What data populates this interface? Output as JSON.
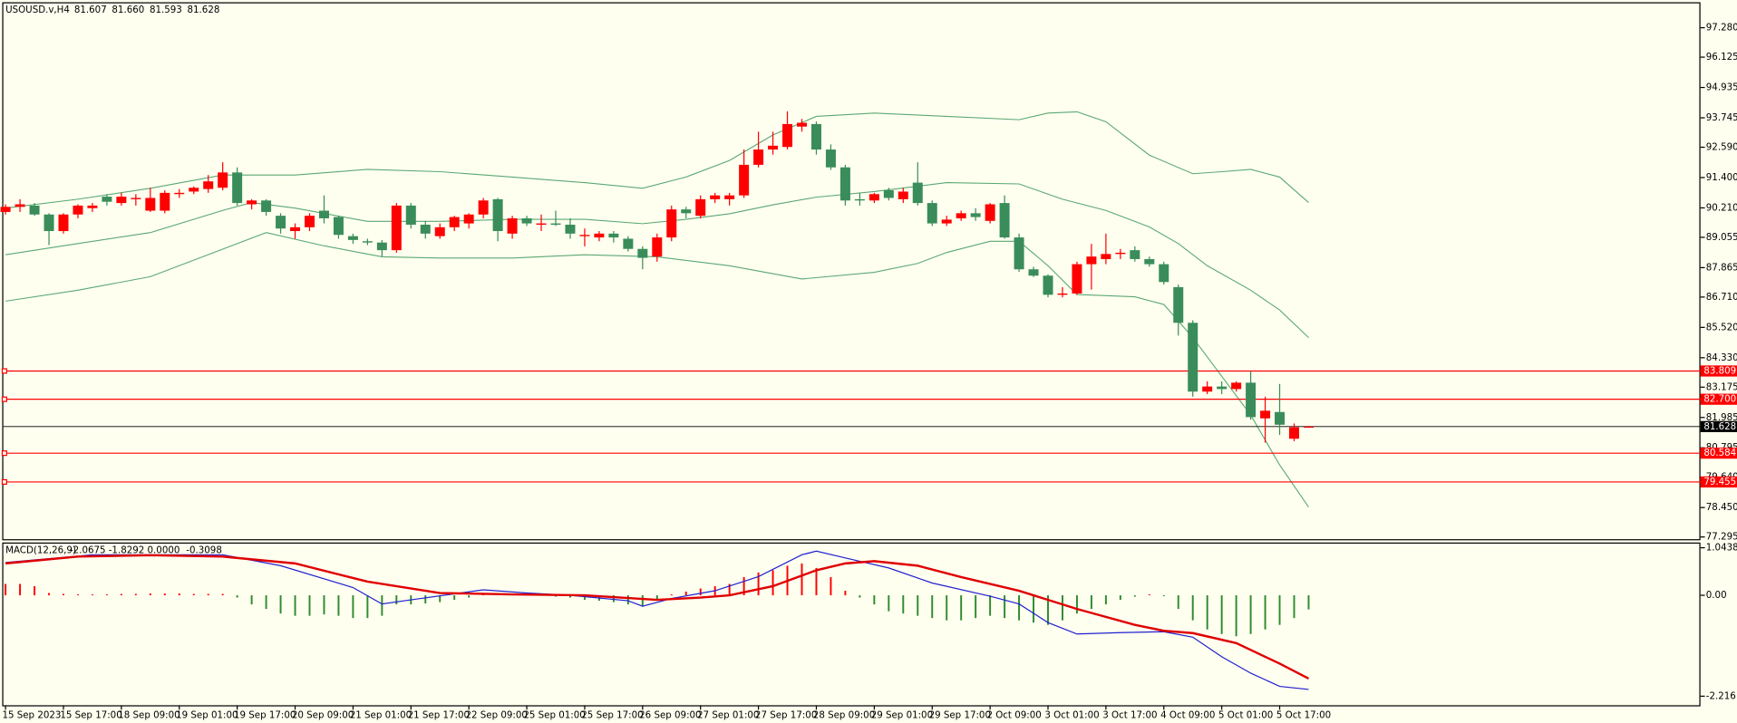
{
  "chart_data": [
    {
      "type": "candlestick",
      "title": "USOUSD.v,H4",
      "readout_labels": [
        "81.607",
        "81.660",
        "81.593",
        "81.628"
      ],
      "categories": [
        "15 Sep 2023",
        null,
        null,
        null,
        "15 Sep 17:00",
        null,
        null,
        null,
        "18 Sep 09:00",
        null,
        null,
        null,
        "19 Sep 01:00",
        null,
        null,
        null,
        "19 Sep 17:00",
        null,
        null,
        null,
        "20 Sep 09:00",
        null,
        null,
        null,
        "21 Sep 01:00",
        null,
        null,
        null,
        "21 Sep 17:00",
        null,
        null,
        null,
        "22 Sep 09:00",
        null,
        null,
        null,
        "25 Sep 01:00",
        null,
        null,
        null,
        "25 Sep 17:00",
        null,
        null,
        null,
        "26 Sep 09:00",
        null,
        null,
        null,
        "27 Sep 01:00",
        null,
        null,
        null,
        "27 Sep 17:00",
        null,
        null,
        null,
        "28 Sep 09:00",
        null,
        null,
        null,
        "29 Sep 01:00",
        null,
        null,
        null,
        "29 Sep 17:00",
        null,
        null,
        null,
        "2 Oct 09:00",
        null,
        null,
        null,
        "3 Oct 01:00",
        null,
        null,
        null,
        "3 Oct 17:00",
        null,
        null,
        null,
        "4 Oct 09:00",
        null,
        null,
        null,
        "5 Oct 01:00",
        null,
        null,
        null,
        "5 Oct 17:00",
        null,
        null
      ],
      "open": [
        90.05,
        90.25,
        90.3,
        89.95,
        89.3,
        89.95,
        90.2,
        90.65,
        90.4,
        90.55,
        90.1,
        90.1,
        90.75,
        90.85,
        90.95,
        91.0,
        91.6,
        90.35,
        90.5,
        89.9,
        89.3,
        89.45,
        90.1,
        89.85,
        89.1,
        88.9,
        88.85,
        88.55,
        90.3,
        89.55,
        89.1,
        89.45,
        89.6,
        89.95,
        90.55,
        89.2,
        89.8,
        89.55,
        89.6,
        89.55,
        89.1,
        89.05,
        89.2,
        89.0,
        88.6,
        88.3,
        89.05,
        90.15,
        89.9,
        90.55,
        90.55,
        90.7,
        91.9,
        92.5,
        92.6,
        93.4,
        93.5,
        92.5,
        91.8,
        90.55,
        90.5,
        90.9,
        90.55,
        91.2,
        90.4,
        89.6,
        89.8,
        90.0,
        89.7,
        90.4,
        89.05,
        87.8,
        87.55,
        86.8,
        86.85,
        88.0,
        88.2,
        88.4,
        88.55,
        88.2,
        88.0,
        87.1,
        85.7,
        83.0,
        83.2,
        83.1,
        83.35,
        81.95,
        82.2,
        81.15,
        81.607
      ],
      "high": [
        90.35,
        90.55,
        90.4,
        90.0,
        90.0,
        90.35,
        90.4,
        90.75,
        90.8,
        90.75,
        91.0,
        90.9,
        90.95,
        91.05,
        91.5,
        92.0,
        91.8,
        90.55,
        90.55,
        90.0,
        89.6,
        90.0,
        90.7,
        89.9,
        89.2,
        89.0,
        88.95,
        90.4,
        90.4,
        89.7,
        89.6,
        89.9,
        90.0,
        90.6,
        90.6,
        89.9,
        89.9,
        89.95,
        90.1,
        89.8,
        89.4,
        89.3,
        89.3,
        89.1,
        88.7,
        89.2,
        90.3,
        90.25,
        90.7,
        90.8,
        90.8,
        92.5,
        93.2,
        93.2,
        94.0,
        93.7,
        93.6,
        92.7,
        91.9,
        90.8,
        90.8,
        91.0,
        91.0,
        92.0,
        90.5,
        89.9,
        90.1,
        90.2,
        90.4,
        90.7,
        89.2,
        87.9,
        87.6,
        87.1,
        88.1,
        88.8,
        89.2,
        88.6,
        88.7,
        88.3,
        88.1,
        87.2,
        85.8,
        83.4,
        83.4,
        83.4,
        83.8,
        82.8,
        83.3,
        81.75,
        81.66
      ],
      "low": [
        89.95,
        90.05,
        89.9,
        88.75,
        89.2,
        89.8,
        90.05,
        90.3,
        90.3,
        90.3,
        90.05,
        90.0,
        90.6,
        90.75,
        90.8,
        90.9,
        90.3,
        90.15,
        89.9,
        89.2,
        89.0,
        89.3,
        89.6,
        89.0,
        88.8,
        88.75,
        88.3,
        88.45,
        89.4,
        89.0,
        89.0,
        89.3,
        89.4,
        89.8,
        88.9,
        89.0,
        89.5,
        89.3,
        89.5,
        89.0,
        88.7,
        88.9,
        88.85,
        88.5,
        87.8,
        88.1,
        88.9,
        89.8,
        89.8,
        90.4,
        90.3,
        90.6,
        91.8,
        92.3,
        92.5,
        93.2,
        92.3,
        91.7,
        90.3,
        90.3,
        90.4,
        90.5,
        90.4,
        90.3,
        89.5,
        89.5,
        89.7,
        89.7,
        89.6,
        89.0,
        87.7,
        87.5,
        86.7,
        86.7,
        86.8,
        87.0,
        88.0,
        88.2,
        88.1,
        87.9,
        87.2,
        85.2,
        82.8,
        82.9,
        82.9,
        83.0,
        81.9,
        81.0,
        81.3,
        81.05,
        81.593
      ],
      "close": [
        90.25,
        90.35,
        89.95,
        89.3,
        89.95,
        90.3,
        90.3,
        90.45,
        90.65,
        90.6,
        90.6,
        90.8,
        90.8,
        91.0,
        91.25,
        91.6,
        90.4,
        90.5,
        90.05,
        89.4,
        89.45,
        89.9,
        89.8,
        89.15,
        88.95,
        88.85,
        88.55,
        90.3,
        89.55,
        89.2,
        89.45,
        89.85,
        89.95,
        90.5,
        89.3,
        89.8,
        89.6,
        89.6,
        89.55,
        89.2,
        89.15,
        89.2,
        89.05,
        88.6,
        88.25,
        89.05,
        90.15,
        90.0,
        90.55,
        90.7,
        90.7,
        91.9,
        92.5,
        92.65,
        93.5,
        93.55,
        92.5,
        91.8,
        90.5,
        90.5,
        90.75,
        90.6,
        90.85,
        90.4,
        89.6,
        89.75,
        90.0,
        89.85,
        90.35,
        89.05,
        87.8,
        87.55,
        86.8,
        86.85,
        88.0,
        88.3,
        88.4,
        88.45,
        88.2,
        88.0,
        87.3,
        85.7,
        83.0,
        83.2,
        83.1,
        83.35,
        82.0,
        82.25,
        81.7,
        81.6,
        81.628
      ],
      "up_color": "#ff0000",
      "down_color": "#3a8d5a",
      "bands": [
        {
          "x": [
            0,
            5,
            10,
            15,
            20,
            25,
            30,
            35,
            40,
            44,
            47,
            50,
            53,
            56,
            60,
            65,
            70,
            72,
            74,
            76,
            79,
            82,
            84,
            86,
            88,
            90
          ],
          "values": [
            90.2,
            90.55,
            90.98,
            91.5,
            91.5,
            91.72,
            91.63,
            91.42,
            91.2,
            90.98,
            91.42,
            92.07,
            93.07,
            93.8,
            93.93,
            93.8,
            93.67,
            93.93,
            93.98,
            93.59,
            92.28,
            91.55,
            91.63,
            91.72,
            91.42,
            90.42
          ]
        },
        {
          "x": [
            0,
            5,
            10,
            15,
            17,
            20,
            25,
            30,
            35,
            40,
            44,
            47,
            50,
            53,
            56,
            60,
            65,
            70,
            73,
            76,
            79,
            81,
            83,
            86,
            88,
            90
          ],
          "values": [
            88.37,
            88.81,
            89.24,
            90.11,
            90.42,
            90.2,
            89.68,
            89.68,
            89.76,
            89.76,
            89.59,
            89.76,
            89.98,
            90.33,
            90.63,
            90.85,
            91.2,
            91.15,
            90.55,
            90.11,
            89.46,
            88.81,
            87.94,
            86.98,
            86.2,
            85.12
          ]
        },
        {
          "x": [
            0,
            5,
            10,
            15,
            18,
            22,
            26,
            30,
            35,
            40,
            45,
            50,
            55,
            60,
            63,
            65,
            68,
            70,
            72,
            74,
            78,
            80,
            82,
            84,
            86,
            88,
            90
          ],
          "values": [
            86.55,
            86.98,
            87.51,
            88.59,
            89.24,
            88.72,
            88.29,
            88.24,
            88.24,
            88.37,
            88.29,
            87.94,
            87.42,
            87.68,
            88.03,
            88.46,
            88.9,
            88.9,
            87.94,
            86.81,
            86.72,
            86.42,
            85.12,
            83.6,
            82.08,
            80.12,
            78.47
          ]
        }
      ],
      "band_color": "#5aa874",
      "levels": [
        83.809,
        {
          "value": 82.7,
          "label": "82.700"
        },
        80.584,
        79.455
      ],
      "level_color": "#ff0000",
      "ylim": [
        77.165,
        98.236
      ],
      "yticks": [
        {
          "value": 97.28,
          "label": "97.280"
        },
        96.125,
        94.935,
        93.745,
        {
          "value": 92.59,
          "label": "92.590"
        },
        {
          "value": 91.4,
          "label": "91.400"
        },
        {
          "value": 90.21,
          "label": "90.210"
        },
        89.055,
        87.865,
        {
          "value": 86.71,
          "label": "86.710"
        },
        {
          "value": 85.52,
          "label": "85.520"
        },
        {
          "value": 84.33,
          "label": "84.330"
        },
        83.175,
        81.985,
        80.795,
        {
          "value": 79.64,
          "label": "79.640"
        },
        {
          "value": 78.45,
          "label": "78.450"
        },
        77.295
      ]
    },
    {
      "type": "macd",
      "title": "MACD(12,26,9)",
      "readout_labels": [
        "-2.0675",
        "-1.8292",
        "0.0000",
        "-0.3098"
      ],
      "histogram": [
        0.25,
        0.25,
        0.2,
        0.05,
        0.03,
        0.02,
        0.02,
        0.02,
        0.03,
        0.03,
        0.04,
        0.04,
        0.04,
        0.03,
        0.03,
        0.03,
        -0.05,
        -0.2,
        -0.3,
        -0.4,
        -0.45,
        -0.45,
        -0.42,
        -0.45,
        -0.5,
        -0.5,
        -0.45,
        -0.2,
        -0.2,
        -0.18,
        -0.15,
        -0.1,
        -0.05,
        0.03,
        0.05,
        0.03,
        0.02,
        0.01,
        -0.03,
        -0.05,
        -0.1,
        -0.12,
        -0.15,
        -0.2,
        -0.25,
        -0.12,
        0.02,
        0.08,
        0.15,
        0.2,
        0.25,
        0.4,
        0.5,
        0.55,
        0.65,
        0.7,
        0.6,
        0.4,
        0.1,
        -0.05,
        -0.2,
        -0.35,
        -0.4,
        -0.45,
        -0.5,
        -0.55,
        -0.55,
        -0.5,
        -0.45,
        -0.5,
        -0.55,
        -0.6,
        -0.65,
        -0.55,
        -0.4,
        -0.3,
        -0.2,
        -0.1,
        -0.03,
        0.02,
        -0.02,
        -0.3,
        -0.55,
        -0.75,
        -0.85,
        -0.9,
        -0.85,
        -0.75,
        -0.65,
        -0.5,
        -0.3098
      ],
      "pos_color": "#ff0000",
      "neg_color": "#2e8b2e",
      "main": {
        "color": "#2020d0",
        "x": [
          0,
          6,
          15,
          19,
          24,
          26,
          28,
          33,
          36,
          39,
          43,
          44,
          46,
          49,
          52,
          55,
          56,
          58,
          61,
          64,
          68,
          70,
          72,
          74,
          77,
          80,
          82,
          84,
          86,
          88,
          90
        ],
        "values": [
          0.72,
          0.89,
          0.89,
          0.65,
          0.17,
          -0.19,
          -0.1,
          0.12,
          0.05,
          0,
          -0.12,
          -0.24,
          -0.07,
          0.1,
          0.41,
          0.89,
          0.97,
          0.82,
          0.6,
          0.27,
          -0.02,
          -0.19,
          -0.6,
          -0.85,
          -0.82,
          -0.8,
          -0.92,
          -1.35,
          -1.71,
          -2.0,
          -2.0675
        ]
      },
      "signal": {
        "color": "#e00000",
        "x": [
          0,
          5,
          10,
          15,
          20,
          25,
          30,
          35,
          40,
          45,
          48,
          50,
          53,
          56,
          58,
          60,
          63,
          66,
          70,
          74,
          78,
          80,
          82,
          85,
          88,
          90
        ],
        "values": [
          0.7,
          0.85,
          0.88,
          0.85,
          0.7,
          0.3,
          0.05,
          0.02,
          0,
          -0.1,
          -0.05,
          0,
          0.2,
          0.55,
          0.7,
          0.75,
          0.65,
          0.4,
          0.1,
          -0.3,
          -0.65,
          -0.78,
          -0.83,
          -1.05,
          -1.5,
          -1.8292
        ]
      },
      "ylim": [
        -2.415,
        1.135
      ],
      "yticks": [
        1.0438,
        {
          "value": 0,
          "label": "0.00"
        },
        -2.216
      ]
    }
  ]
}
